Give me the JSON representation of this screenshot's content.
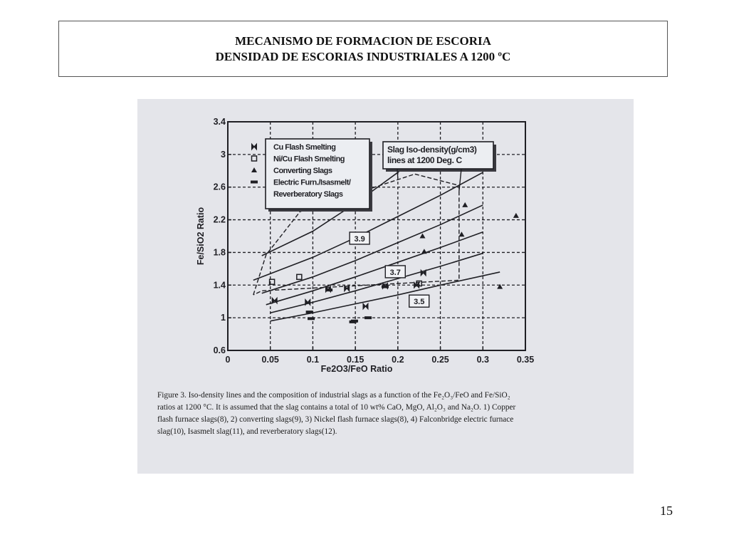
{
  "slide": {
    "title_line1": "MECANISMO DE FORMACION DE ESCORIA",
    "title_line2": "DENSIDAD DE ESCORIAS INDUSTRIALES A 1200 ºC",
    "page_number": "15"
  },
  "caption": {
    "lines": [
      "Figure 3. Iso-density lines and the composition of industrial slags as a function of the Fe₂O₃/FeO and Fe/SiO₂",
      "ratios at 1200 °C. It is assumed that the slag contains a total of 10 wt% CaO, MgO, Al₂O₃ and Na₂O. 1) Copper",
      "flash furnace slags(8), 2) converting slags(9), 3) Nickel flash furnace slags(8), 4) Falconbridge electric furnace",
      "slag(10), Isasmelt slag(11), and reverberatory slags(12)."
    ]
  },
  "chart_data": {
    "type": "scatter",
    "xlabel": "Fe2O3/FeO Ratio",
    "ylabel": "Fe/SiO2 Ratio",
    "xlim": [
      0,
      0.35
    ],
    "ylim": [
      0.6,
      3.4
    ],
    "xticks": [
      "0",
      "0.05",
      "0.1",
      "0.15",
      "0.2",
      "0.25",
      "0.3",
      "0.35"
    ],
    "yticks": [
      "0.6",
      "1",
      "1.4",
      "1.8",
      "2.2",
      "2.6",
      "3",
      "3.4"
    ],
    "grid": true,
    "legend_position": "top-left",
    "legend": [
      {
        "label": "Cu Flash Smelting",
        "marker": "bowtie"
      },
      {
        "label": "Ni/Cu Flash Smelting",
        "marker": "open-square"
      },
      {
        "label": "Converting Slags",
        "marker": "triangle"
      },
      {
        "label": "Electric Furn./Isasmelt/",
        "marker": "dash"
      },
      {
        "label": "Reverberatory Slags",
        "marker": ""
      }
    ],
    "annotation": [
      "Slag Iso-density(g/cm3)",
      "lines at 1200 Deg. C"
    ],
    "iso_lines": [
      {
        "label": "",
        "points": [
          [
            0.04,
            1.76
          ],
          [
            0.1,
            2.06
          ],
          [
            0.15,
            2.4
          ],
          [
            0.2,
            2.78
          ],
          [
            0.23,
            3.08
          ]
        ]
      },
      {
        "label": "3.9",
        "points": [
          [
            0.03,
            1.46
          ],
          [
            0.1,
            1.74
          ],
          [
            0.15,
            1.98
          ],
          [
            0.2,
            2.24
          ],
          [
            0.25,
            2.5
          ],
          [
            0.3,
            2.78
          ]
        ]
      },
      {
        "label": "",
        "points": [
          [
            0.04,
            1.3
          ],
          [
            0.1,
            1.5
          ],
          [
            0.15,
            1.7
          ],
          [
            0.2,
            1.92
          ],
          [
            0.25,
            2.14
          ],
          [
            0.3,
            2.38
          ]
        ]
      },
      {
        "label": "3.7",
        "points": [
          [
            0.045,
            1.16
          ],
          [
            0.1,
            1.33
          ],
          [
            0.15,
            1.5
          ],
          [
            0.2,
            1.68
          ],
          [
            0.25,
            1.86
          ],
          [
            0.3,
            2.05
          ]
        ]
      },
      {
        "label": "",
        "points": [
          [
            0.05,
            1.06
          ],
          [
            0.1,
            1.19
          ],
          [
            0.15,
            1.33
          ],
          [
            0.2,
            1.48
          ],
          [
            0.25,
            1.63
          ],
          [
            0.3,
            1.79
          ]
        ]
      },
      {
        "label": "3.5",
        "points": [
          [
            0.05,
            0.96
          ],
          [
            0.1,
            1.06
          ],
          [
            0.15,
            1.17
          ],
          [
            0.2,
            1.28
          ],
          [
            0.25,
            1.4
          ],
          [
            0.32,
            1.56
          ]
        ]
      }
    ],
    "region_outline": [
      [
        0.03,
        1.28
      ],
      [
        0.045,
        1.77
      ],
      [
        0.085,
        2.3
      ],
      [
        0.22,
        2.76
      ],
      [
        0.272,
        2.62
      ],
      [
        0.272,
        1.46
      ],
      [
        0.04,
        1.33
      ],
      [
        0.03,
        1.28
      ]
    ],
    "series": [
      {
        "name": "Cu Flash Smelting",
        "marker": "bowtie",
        "points": [
          [
            0.055,
            1.21
          ],
          [
            0.094,
            1.19
          ],
          [
            0.118,
            1.35
          ],
          [
            0.14,
            1.36
          ],
          [
            0.162,
            1.14
          ],
          [
            0.185,
            1.39
          ],
          [
            0.222,
            1.4
          ],
          [
            0.23,
            1.55
          ]
        ]
      },
      {
        "name": "Ni/Cu Flash Smelting",
        "marker": "open-square",
        "points": [
          [
            0.052,
            1.44
          ],
          [
            0.084,
            1.5
          ],
          [
            0.225,
            1.42
          ]
        ]
      },
      {
        "name": "Converting Slags",
        "marker": "triangle",
        "points": [
          [
            0.229,
            2.0
          ],
          [
            0.231,
            1.81
          ],
          [
            0.275,
            2.02
          ],
          [
            0.279,
            2.38
          ],
          [
            0.339,
            2.25
          ],
          [
            0.32,
            1.38
          ]
        ]
      },
      {
        "name": "Electric Furn./Isasmelt/Reverberatory Slags",
        "marker": "dash",
        "points": [
          [
            0.096,
            1.07
          ],
          [
            0.098,
            0.99
          ],
          [
            0.119,
            1.34
          ],
          [
            0.147,
            0.95
          ],
          [
            0.149,
            0.96
          ],
          [
            0.165,
            1.0
          ],
          [
            0.185,
            1.38
          ]
        ]
      }
    ]
  }
}
